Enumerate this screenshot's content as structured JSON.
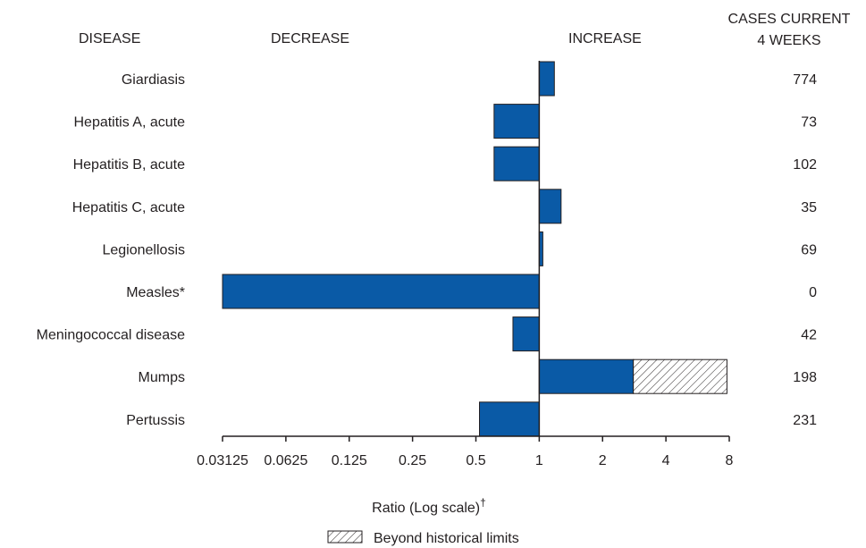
{
  "headers": {
    "disease": "DISEASE",
    "decrease": "DECREASE",
    "increase": "INCREASE",
    "cases_line1": "CASES CURRENT",
    "cases_line2": "4 WEEKS"
  },
  "legend": {
    "label": "Beyond historical limits"
  },
  "colors": {
    "bar": "#0a5aa6",
    "bar_outline": "#231f20",
    "axis": "#231f20"
  },
  "chart_data": {
    "type": "bar",
    "orientation": "horizontal",
    "categories": [
      "Giardiasis",
      "Hepatitis A, acute",
      "Hepatitis B, acute",
      "Hepatitis C, acute",
      "Legionellosis",
      "Measles*",
      "Meningococcal disease",
      "Mumps",
      "Pertussis"
    ],
    "values": [
      1.18,
      0.61,
      0.61,
      1.27,
      1.04,
      0.03125,
      0.75,
      2.8,
      0.52
    ],
    "beyond_historical_limits_to": [
      null,
      null,
      null,
      null,
      null,
      null,
      null,
      7.8,
      null
    ],
    "cases_current_4_weeks": [
      "774",
      "73",
      "102",
      "35",
      "69",
      "0",
      "42",
      "198",
      "231"
    ],
    "xlabel": "Ratio (Log scale)",
    "xlabel_mark": "†",
    "xscale": "log2",
    "xlim": [
      0.03125,
      8
    ],
    "xticks": [
      0.03125,
      0.0625,
      0.125,
      0.25,
      0.5,
      1,
      2,
      4,
      8
    ],
    "xtick_labels": [
      "0.03125",
      "0.0625",
      "0.125",
      "0.25",
      "0.5",
      "1",
      "2",
      "4",
      "8"
    ],
    "reference_line": 1,
    "grid": false
  }
}
